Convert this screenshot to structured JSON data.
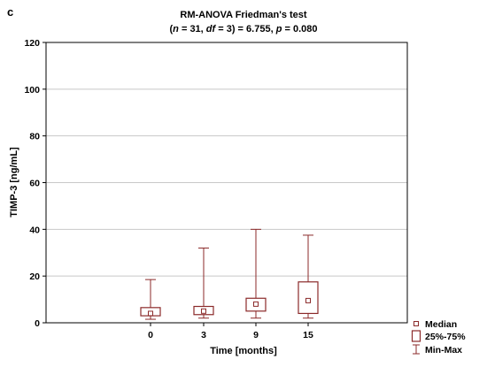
{
  "panel_label": "c",
  "chart_data": {
    "type": "boxplot",
    "title": "RM-ANOVA Friedman's test",
    "subtitle_parts": [
      {
        "text": "(",
        "italic": false
      },
      {
        "text": "n",
        "italic": true
      },
      {
        "text": " = 31, ",
        "italic": false
      },
      {
        "text": "df",
        "italic": true
      },
      {
        "text": " = 3) = 6.755, ",
        "italic": false
      },
      {
        "text": "p",
        "italic": true
      },
      {
        "text": " = 0.080",
        "italic": false
      }
    ],
    "xlabel": "Time [months]",
    "ylabel": "TIMP-3 [ng/mL]",
    "ylim": [
      0,
      120
    ],
    "yticks": [
      0,
      20,
      40,
      60,
      80,
      100,
      120
    ],
    "grid": "horizontal",
    "categories": [
      "0",
      "3",
      "9",
      "15"
    ],
    "boxes": [
      {
        "category": "0",
        "min": 1.5,
        "q1": 3,
        "median": 4,
        "q3": 6.5,
        "max": 18.5
      },
      {
        "category": "3",
        "min": 2,
        "q1": 3.5,
        "median": 5,
        "q3": 7,
        "max": 32
      },
      {
        "category": "9",
        "min": 2,
        "q1": 5,
        "median": 8,
        "q3": 10.5,
        "max": 40
      },
      {
        "category": "15",
        "min": 2,
        "q1": 4,
        "median": 9.5,
        "q3": 17.5,
        "max": 37.5
      }
    ],
    "legend": {
      "position": "bottom-right",
      "items": [
        {
          "symbol": "median",
          "label": "Median"
        },
        {
          "symbol": "box",
          "label": "25%-75%"
        },
        {
          "symbol": "whisker",
          "label": "Min-Max"
        }
      ]
    },
    "colors": {
      "box": "#8b2a2a",
      "grid": "#c8c8c8",
      "axis": "#000000"
    }
  }
}
